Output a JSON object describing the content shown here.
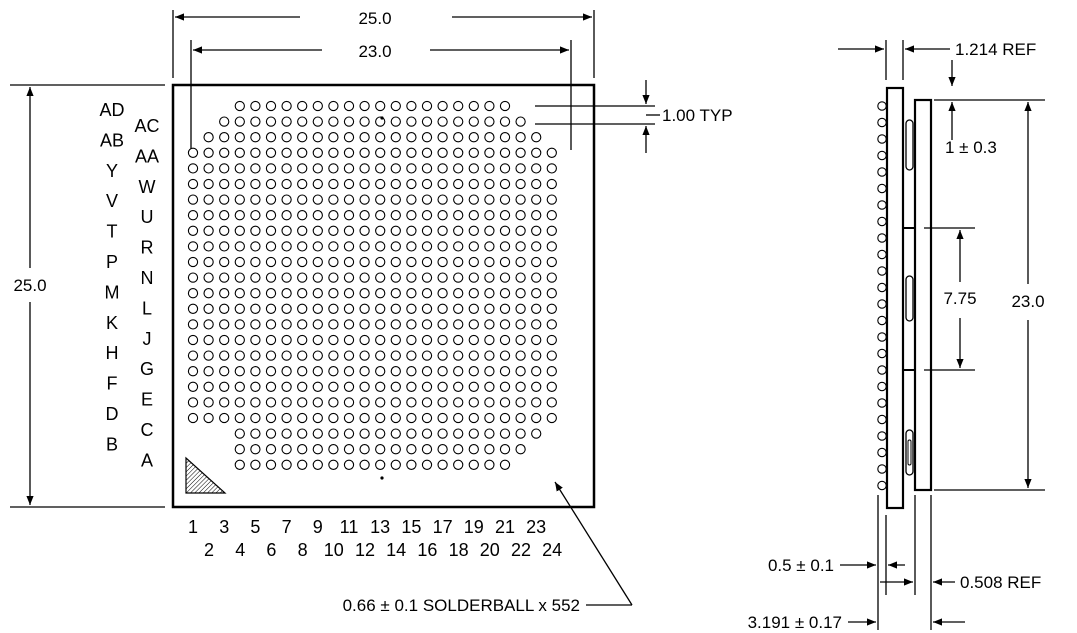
{
  "top_view": {
    "dim_overall_width": "25.0",
    "dim_ball_span_width": "23.0",
    "dim_overall_height": "25.0",
    "dim_pitch": "1.00 TYP",
    "solderball_note": "0.66 ± 0.1 SOLDERBALL x 552",
    "row_labels_outer": [
      "AD",
      "AB",
      "Y",
      "V",
      "T",
      "P",
      "M",
      "K",
      "H",
      "F",
      "D",
      "B"
    ],
    "row_labels_inner": [
      "AC",
      "AA",
      "W",
      "U",
      "R",
      "N",
      "L",
      "J",
      "G",
      "E",
      "C",
      "A"
    ],
    "col_labels_odd": [
      "1",
      "3",
      "5",
      "7",
      "9",
      "11",
      "13",
      "15",
      "17",
      "19",
      "21",
      "23"
    ],
    "col_labels_even": [
      "2",
      "4",
      "6",
      "8",
      "10",
      "12",
      "14",
      "16",
      "18",
      "20",
      "22",
      "24"
    ]
  },
  "side_view": {
    "dim_lid_thickness": "1.214 REF",
    "dim_lid_offset": "1 ± 0.3",
    "dim_span": "23.0",
    "dim_gap": "7.75",
    "dim_ball_height": "0.5 ± 0.1",
    "dim_substrate": "0.508 REF",
    "dim_total_height": "3.191 ± 0.17"
  }
}
